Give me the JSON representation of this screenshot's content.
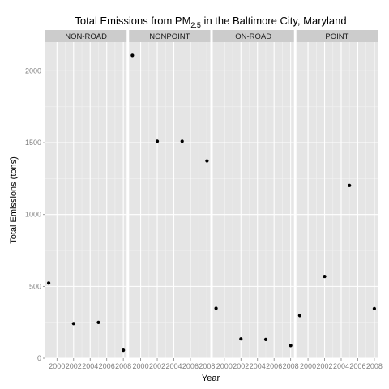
{
  "chart_data": {
    "type": "scatter",
    "title": {
      "pre": "Total Emissions from PM",
      "sub": "2.5",
      "post": " in the Baltimore City, Maryland"
    },
    "xlabel": "Year",
    "ylabel": "Total Emissions (tons)",
    "ylim": [
      0,
      2200
    ],
    "yticks": [
      0,
      500,
      1000,
      1500,
      2000
    ],
    "xlim": [
      1998.6,
      2008.4
    ],
    "xticks": [
      2000,
      2002,
      2004,
      2006,
      2008
    ],
    "grid": true,
    "facet_by": "type",
    "panels": [
      {
        "label": "NON-ROAD",
        "x": [
          1999,
          2002,
          2005,
          2008
        ],
        "y": [
          522.94,
          240.85,
          248.93,
          55.82
        ]
      },
      {
        "label": "NONPOINT",
        "x": [
          1999,
          2002,
          2005,
          2008
        ],
        "y": [
          2107.63,
          1509.5,
          1509.5,
          1373.21
        ]
      },
      {
        "label": "ON-ROAD",
        "x": [
          1999,
          2002,
          2005,
          2008
        ],
        "y": [
          346.82,
          134.31,
          130.43,
          88.28
        ]
      },
      {
        "label": "POINT",
        "x": [
          1999,
          2002,
          2005,
          2008
        ],
        "y": [
          296.8,
          569.26,
          1202.49,
          344.98
        ]
      }
    ],
    "colors": {
      "panel_bg": "#e5e5e5",
      "strip_bg": "#cccccc",
      "grid_major": "#ffffff",
      "grid_minor": "#f2f2f2",
      "point": "#000000",
      "tick_text": "#7f7f7f"
    }
  }
}
